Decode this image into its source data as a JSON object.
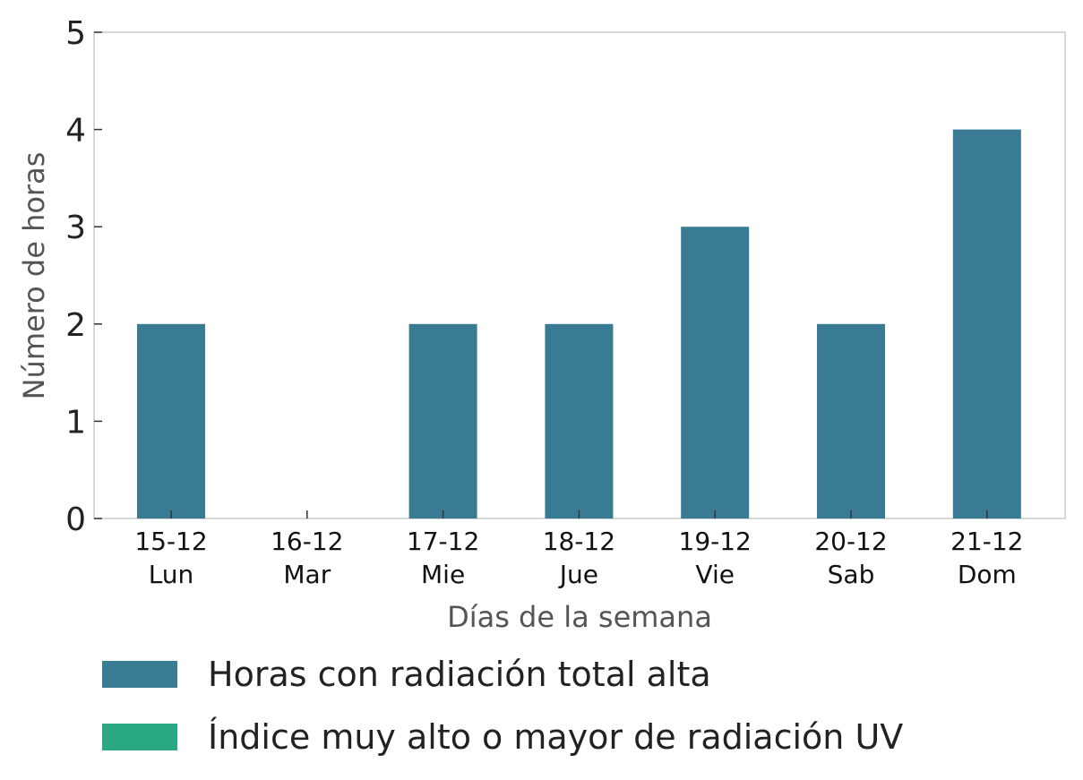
{
  "chart_data": {
    "type": "bar",
    "categories": [
      "15-12\nLun",
      "16-12\nMar",
      "17-12\nMie",
      "18-12\nJue",
      "19-12\nVie",
      "20-12\nSab",
      "21-12\nDom"
    ],
    "category_dates": [
      "15-12",
      "16-12",
      "17-12",
      "18-12",
      "19-12",
      "20-12",
      "21-12"
    ],
    "category_days": [
      "Lun",
      "Mar",
      "Mie",
      "Jue",
      "Vie",
      "Sab",
      "Dom"
    ],
    "series": [
      {
        "name": "Horas con radiación total alta",
        "values": [
          2,
          0,
          2,
          2,
          3,
          2,
          4
        ],
        "color": "#387b93"
      },
      {
        "name": "Índice muy alto o mayor de radiación UV",
        "values": [
          0,
          0,
          0,
          0,
          0,
          0,
          0
        ],
        "color": "#2aa884"
      }
    ],
    "xlabel": "Días de la semana",
    "ylabel": "Número de horas",
    "ylim": [
      0,
      5
    ],
    "yticks": [
      "0",
      "1",
      "2",
      "3",
      "4",
      "5"
    ],
    "grid": false,
    "legend_position": "bottom-left"
  }
}
